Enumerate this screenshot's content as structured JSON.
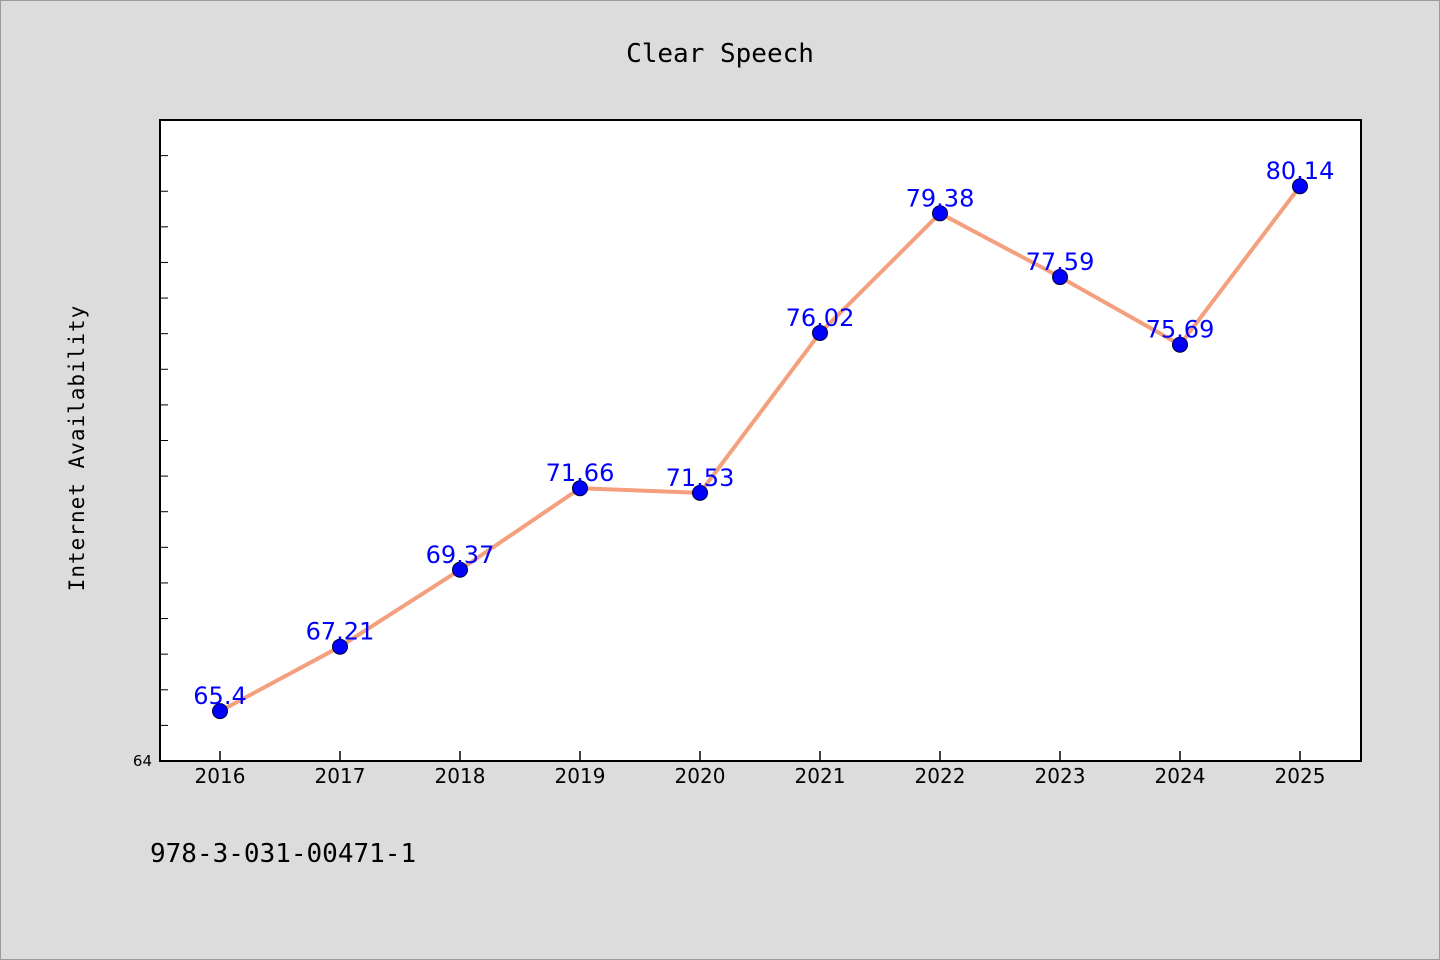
{
  "footer": {
    "isbn": "978-3-031-00471-1"
  },
  "chart_data": {
    "type": "line",
    "title": "Clear Speech",
    "xlabel": "",
    "ylabel": "Internet Availability",
    "categories": [
      "2016",
      "2017",
      "2018",
      "2019",
      "2020",
      "2021",
      "2022",
      "2023",
      "2024",
      "2025"
    ],
    "values": [
      65.4,
      67.21,
      69.37,
      71.66,
      71.53,
      76.02,
      79.38,
      77.59,
      75.69,
      80.14
    ],
    "data_labels": [
      "65.4",
      "67.21",
      "69.37",
      "71.66",
      "71.53",
      "76.02",
      "79.38",
      "77.59",
      "75.69",
      "80.14"
    ],
    "ylim": [
      64,
      82
    ],
    "y_tick_labels": [
      "64"
    ],
    "grid": false,
    "legend": "none",
    "colors": {
      "line": "#f4a07e",
      "marker": "#0000ff",
      "label": "#0000ff",
      "background": "#dcdcdc",
      "plot_background": "#ffffff"
    }
  }
}
